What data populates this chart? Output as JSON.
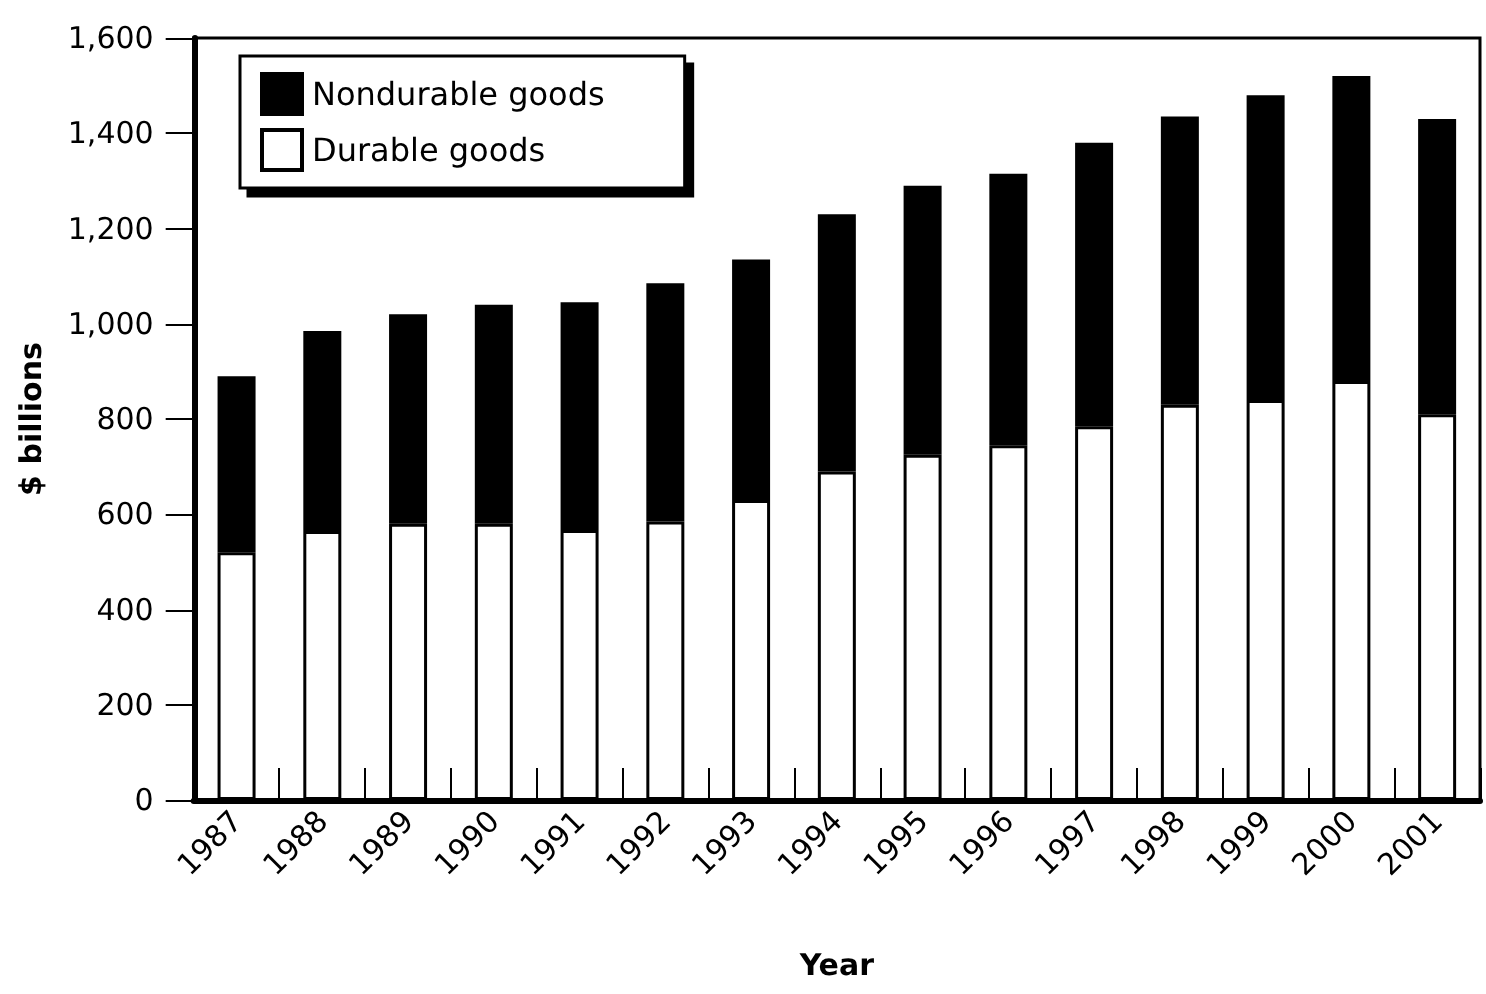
{
  "chart_data": {
    "type": "bar",
    "stacked": true,
    "xlabel": "Year",
    "ylabel": "$ billions",
    "categories": [
      "1987",
      "1988",
      "1989",
      "1990",
      "1991",
      "1992",
      "1993",
      "1994",
      "1995",
      "1996",
      "1997",
      "1998",
      "1999",
      "2000",
      "2001"
    ],
    "series": [
      {
        "name": "Durable goods",
        "color": "#ffffff",
        "values": [
          520,
          565,
          580,
          580,
          567,
          585,
          630,
          690,
          725,
          745,
          785,
          830,
          840,
          880,
          810
        ]
      },
      {
        "name": "Nondurable goods",
        "color": "#000000",
        "values": [
          370,
          420,
          440,
          460,
          478,
          500,
          505,
          540,
          565,
          570,
          595,
          605,
          640,
          640,
          620
        ]
      }
    ],
    "ylim": [
      0,
      1600
    ],
    "yticks": [
      0,
      200,
      400,
      600,
      800,
      {
        "value": 1000,
        "label": "1,000"
      },
      {
        "value": 1200,
        "label": "1,200"
      },
      {
        "value": 1400,
        "label": "1,400"
      },
      {
        "value": 1600,
        "label": "1,600"
      }
    ],
    "grid": false,
    "legend": "top left"
  }
}
